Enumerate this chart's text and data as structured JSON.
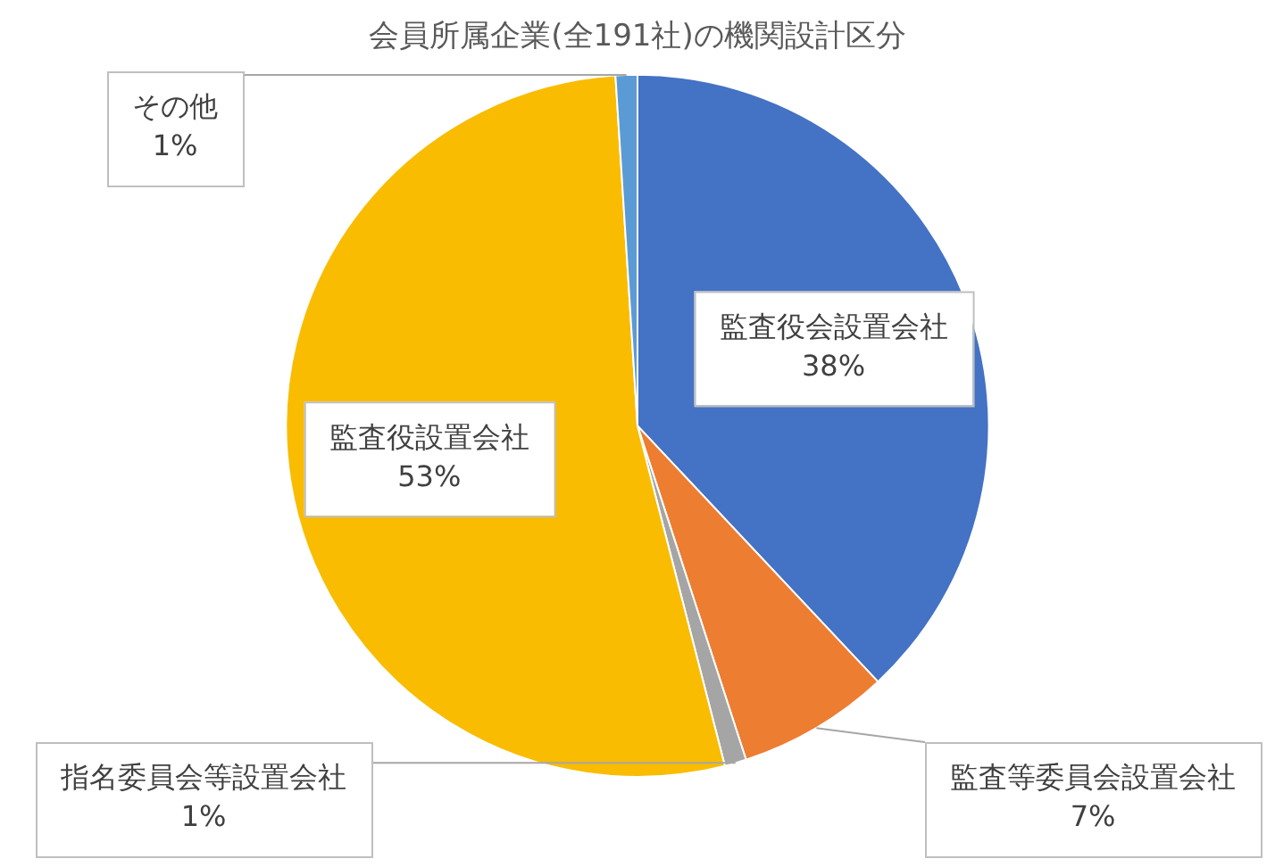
{
  "chart_data": {
    "type": "pie",
    "title": "会員所属企業(全191社)の機関設計区分",
    "categories": [
      "監査役会設置会社",
      "監査等委員会設置会社",
      "指名委員会等設置会社",
      "監査役設置会社",
      "その他"
    ],
    "values": [
      38,
      7,
      1,
      53,
      1
    ],
    "colors": [
      "#4472c4",
      "#ed7d31",
      "#a5a5a5",
      "#f9bc00",
      "#5b9bd5"
    ],
    "value_labels": [
      "38%",
      "7%",
      "1%",
      "53%",
      "1%"
    ],
    "legend": false
  }
}
